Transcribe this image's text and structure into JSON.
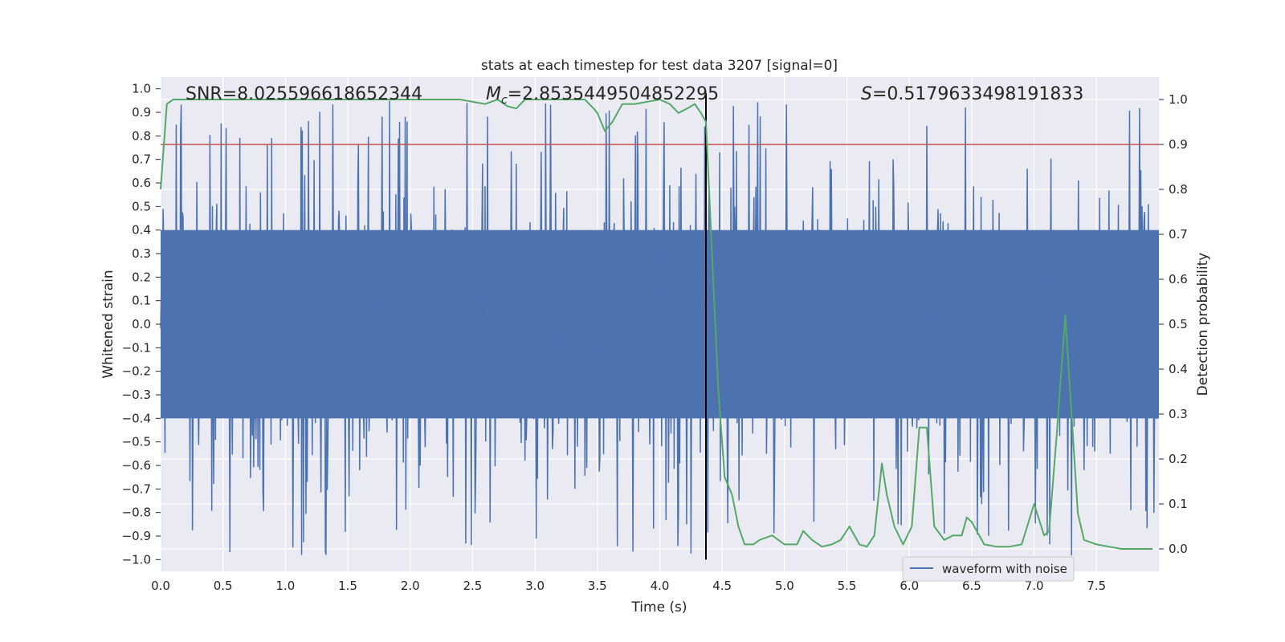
{
  "chart_data": {
    "type": "line",
    "title": "stats at each timestep for test data 3207 [signal=0]",
    "xlabel": "Time (s)",
    "ylabel_left": "Whitened strain",
    "ylabel_right": "Detection probability",
    "xlim": [
      0.0,
      8.0
    ],
    "ylim_left": [
      -1.05,
      1.05
    ],
    "ylim_right": [
      -0.05,
      1.05
    ],
    "x_ticks": [
      "0.0",
      "0.5",
      "1.0",
      "1.5",
      "2.0",
      "2.5",
      "3.0",
      "3.5",
      "4.0",
      "4.5",
      "5.0",
      "5.5",
      "6.0",
      "6.5",
      "7.0",
      "7.5"
    ],
    "y_left_ticks": [
      "1.0",
      "0.9",
      "0.8",
      "0.7",
      "0.6",
      "0.5",
      "0.4",
      "0.3",
      "0.2",
      "0.1",
      "0.0",
      "−0.1",
      "−0.2",
      "−0.3",
      "−0.4",
      "−0.5",
      "−0.6",
      "−0.7",
      "−0.8",
      "−0.9",
      "−1.0"
    ],
    "y_right_ticks": [
      "1.0",
      "0.9",
      "0.8",
      "0.7",
      "0.6",
      "0.5",
      "0.4",
      "0.3",
      "0.2",
      "0.1",
      "0.0"
    ],
    "annotations": {
      "snr": "SNR=8.025596618652344",
      "mc_symbol": "M",
      "mc_sub": "c",
      "mc_value": "=2.8535449504852295",
      "s_symbol": "S",
      "s_value": "=0.5179633498191833"
    },
    "threshold": {
      "value": 0.9,
      "axis": "right",
      "color": "#c44e52"
    },
    "vline_time": 4.37,
    "legend": {
      "label": "waveform with noise",
      "location": "lower-right"
    },
    "waveform": {
      "name": "waveform with noise",
      "color": "#4c72b0",
      "samples": 1600,
      "seed": 3207,
      "core_amplitude": 0.4,
      "peak_max": 0.96,
      "trough_min": -0.99
    },
    "detection_probability": {
      "name": "Detection probability",
      "color": "#55a868",
      "x": [
        0.0,
        0.05,
        0.1,
        0.2,
        0.4,
        0.6,
        0.8,
        1.0,
        1.2,
        1.4,
        1.6,
        1.8,
        2.0,
        2.2,
        2.4,
        2.6,
        2.7,
        2.78,
        2.85,
        2.92,
        3.0,
        3.1,
        3.2,
        3.3,
        3.4,
        3.47,
        3.5,
        3.56,
        3.62,
        3.7,
        3.8,
        3.9,
        4.0,
        4.08,
        4.15,
        4.22,
        4.28,
        4.33,
        4.37,
        4.42,
        4.47,
        4.52,
        4.58,
        4.63,
        4.68,
        4.75,
        4.8,
        4.9,
        5.0,
        5.1,
        5.15,
        5.22,
        5.3,
        5.38,
        5.45,
        5.52,
        5.6,
        5.66,
        5.72,
        5.78,
        5.82,
        5.88,
        5.95,
        6.02,
        6.08,
        6.14,
        6.2,
        6.28,
        6.35,
        6.42,
        6.46,
        6.5,
        6.6,
        6.7,
        6.8,
        6.9,
        7.0,
        7.08,
        7.12,
        7.18,
        7.25,
        7.3,
        7.35,
        7.4,
        7.5,
        7.6,
        7.7,
        7.8,
        7.95
      ],
      "y": [
        0.8,
        0.99,
        1.0,
        1.0,
        1.0,
        1.0,
        1.0,
        1.0,
        1.0,
        1.0,
        1.0,
        1.0,
        1.0,
        1.0,
        1.0,
        0.99,
        1.0,
        0.985,
        0.98,
        1.0,
        1.0,
        1.0,
        1.0,
        1.0,
        1.0,
        0.98,
        0.97,
        0.93,
        0.95,
        0.99,
        0.99,
        0.995,
        1.0,
        0.99,
        0.97,
        0.98,
        0.99,
        0.97,
        0.95,
        0.65,
        0.35,
        0.16,
        0.12,
        0.05,
        0.01,
        0.01,
        0.02,
        0.03,
        0.01,
        0.01,
        0.04,
        0.02,
        0.005,
        0.01,
        0.02,
        0.05,
        0.01,
        0.005,
        0.03,
        0.19,
        0.12,
        0.05,
        0.01,
        0.05,
        0.27,
        0.27,
        0.05,
        0.02,
        0.03,
        0.03,
        0.07,
        0.06,
        0.01,
        0.005,
        0.005,
        0.01,
        0.1,
        0.03,
        0.04,
        0.25,
        0.52,
        0.3,
        0.08,
        0.02,
        0.01,
        0.005,
        0.0,
        0.0,
        0.0
      ]
    }
  }
}
